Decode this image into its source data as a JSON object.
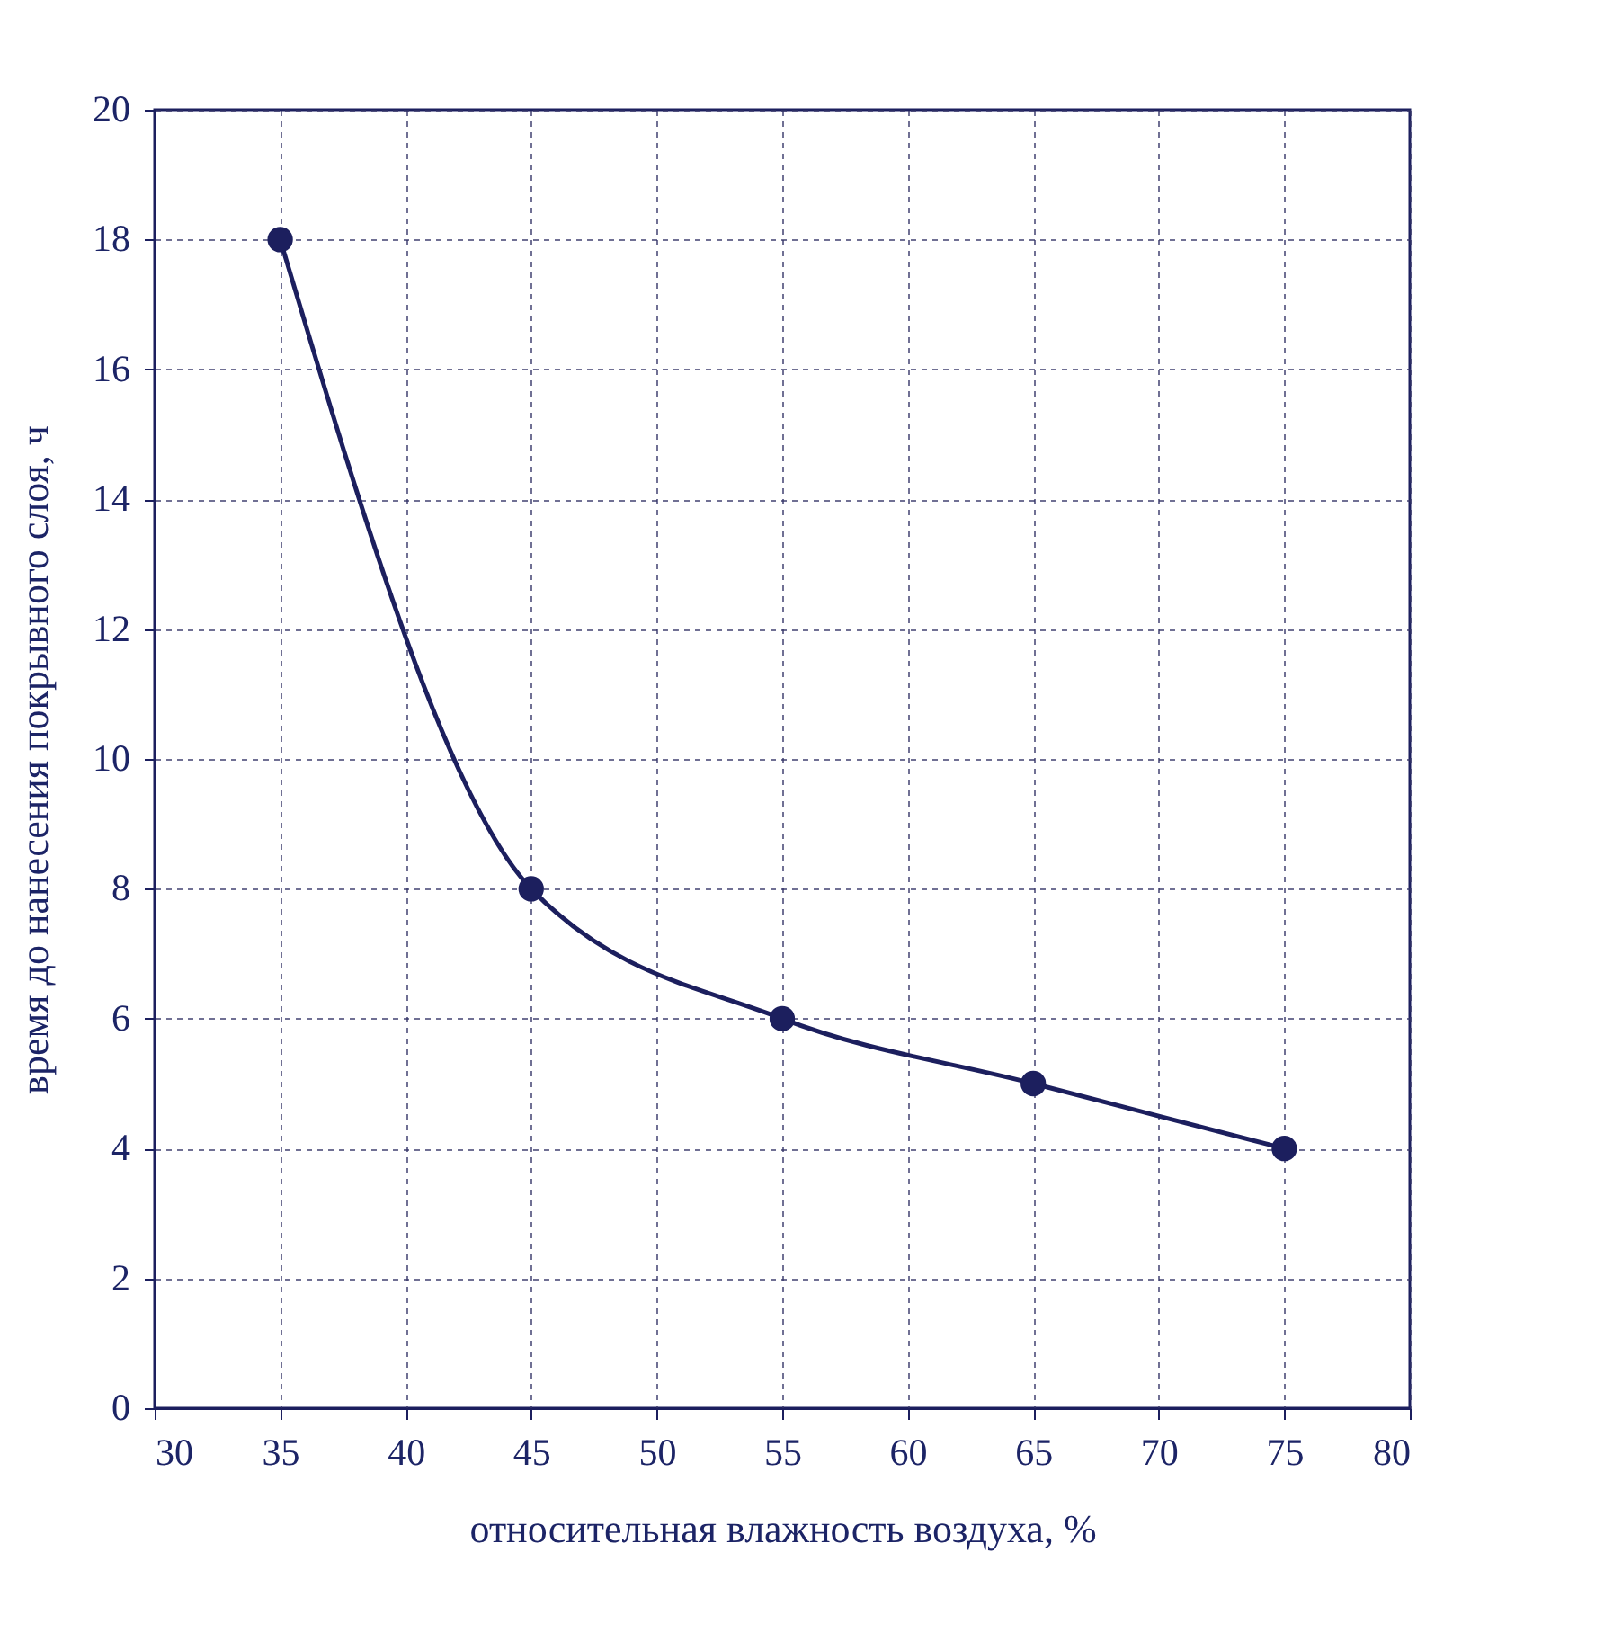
{
  "chart_data": {
    "type": "line",
    "xlabel": "относительная влажность воздуха, %",
    "ylabel": "время до нанесения покрывного слоя, ч",
    "x": [
      35,
      45,
      55,
      65,
      75
    ],
    "series": [
      {
        "color": "#1c1f5e",
        "values": [
          18,
          8,
          6,
          5,
          4
        ]
      }
    ],
    "xlim": [
      30,
      80
    ],
    "xticks": [
      30,
      35,
      40,
      45,
      50,
      55,
      60,
      65,
      70,
      75,
      80
    ],
    "ylim": [
      0,
      20
    ],
    "yticks": [
      0,
      2,
      4,
      6,
      8,
      10,
      12,
      14,
      16,
      18,
      20
    ],
    "grid": true,
    "marker": "circle",
    "line_style": "solid"
  }
}
